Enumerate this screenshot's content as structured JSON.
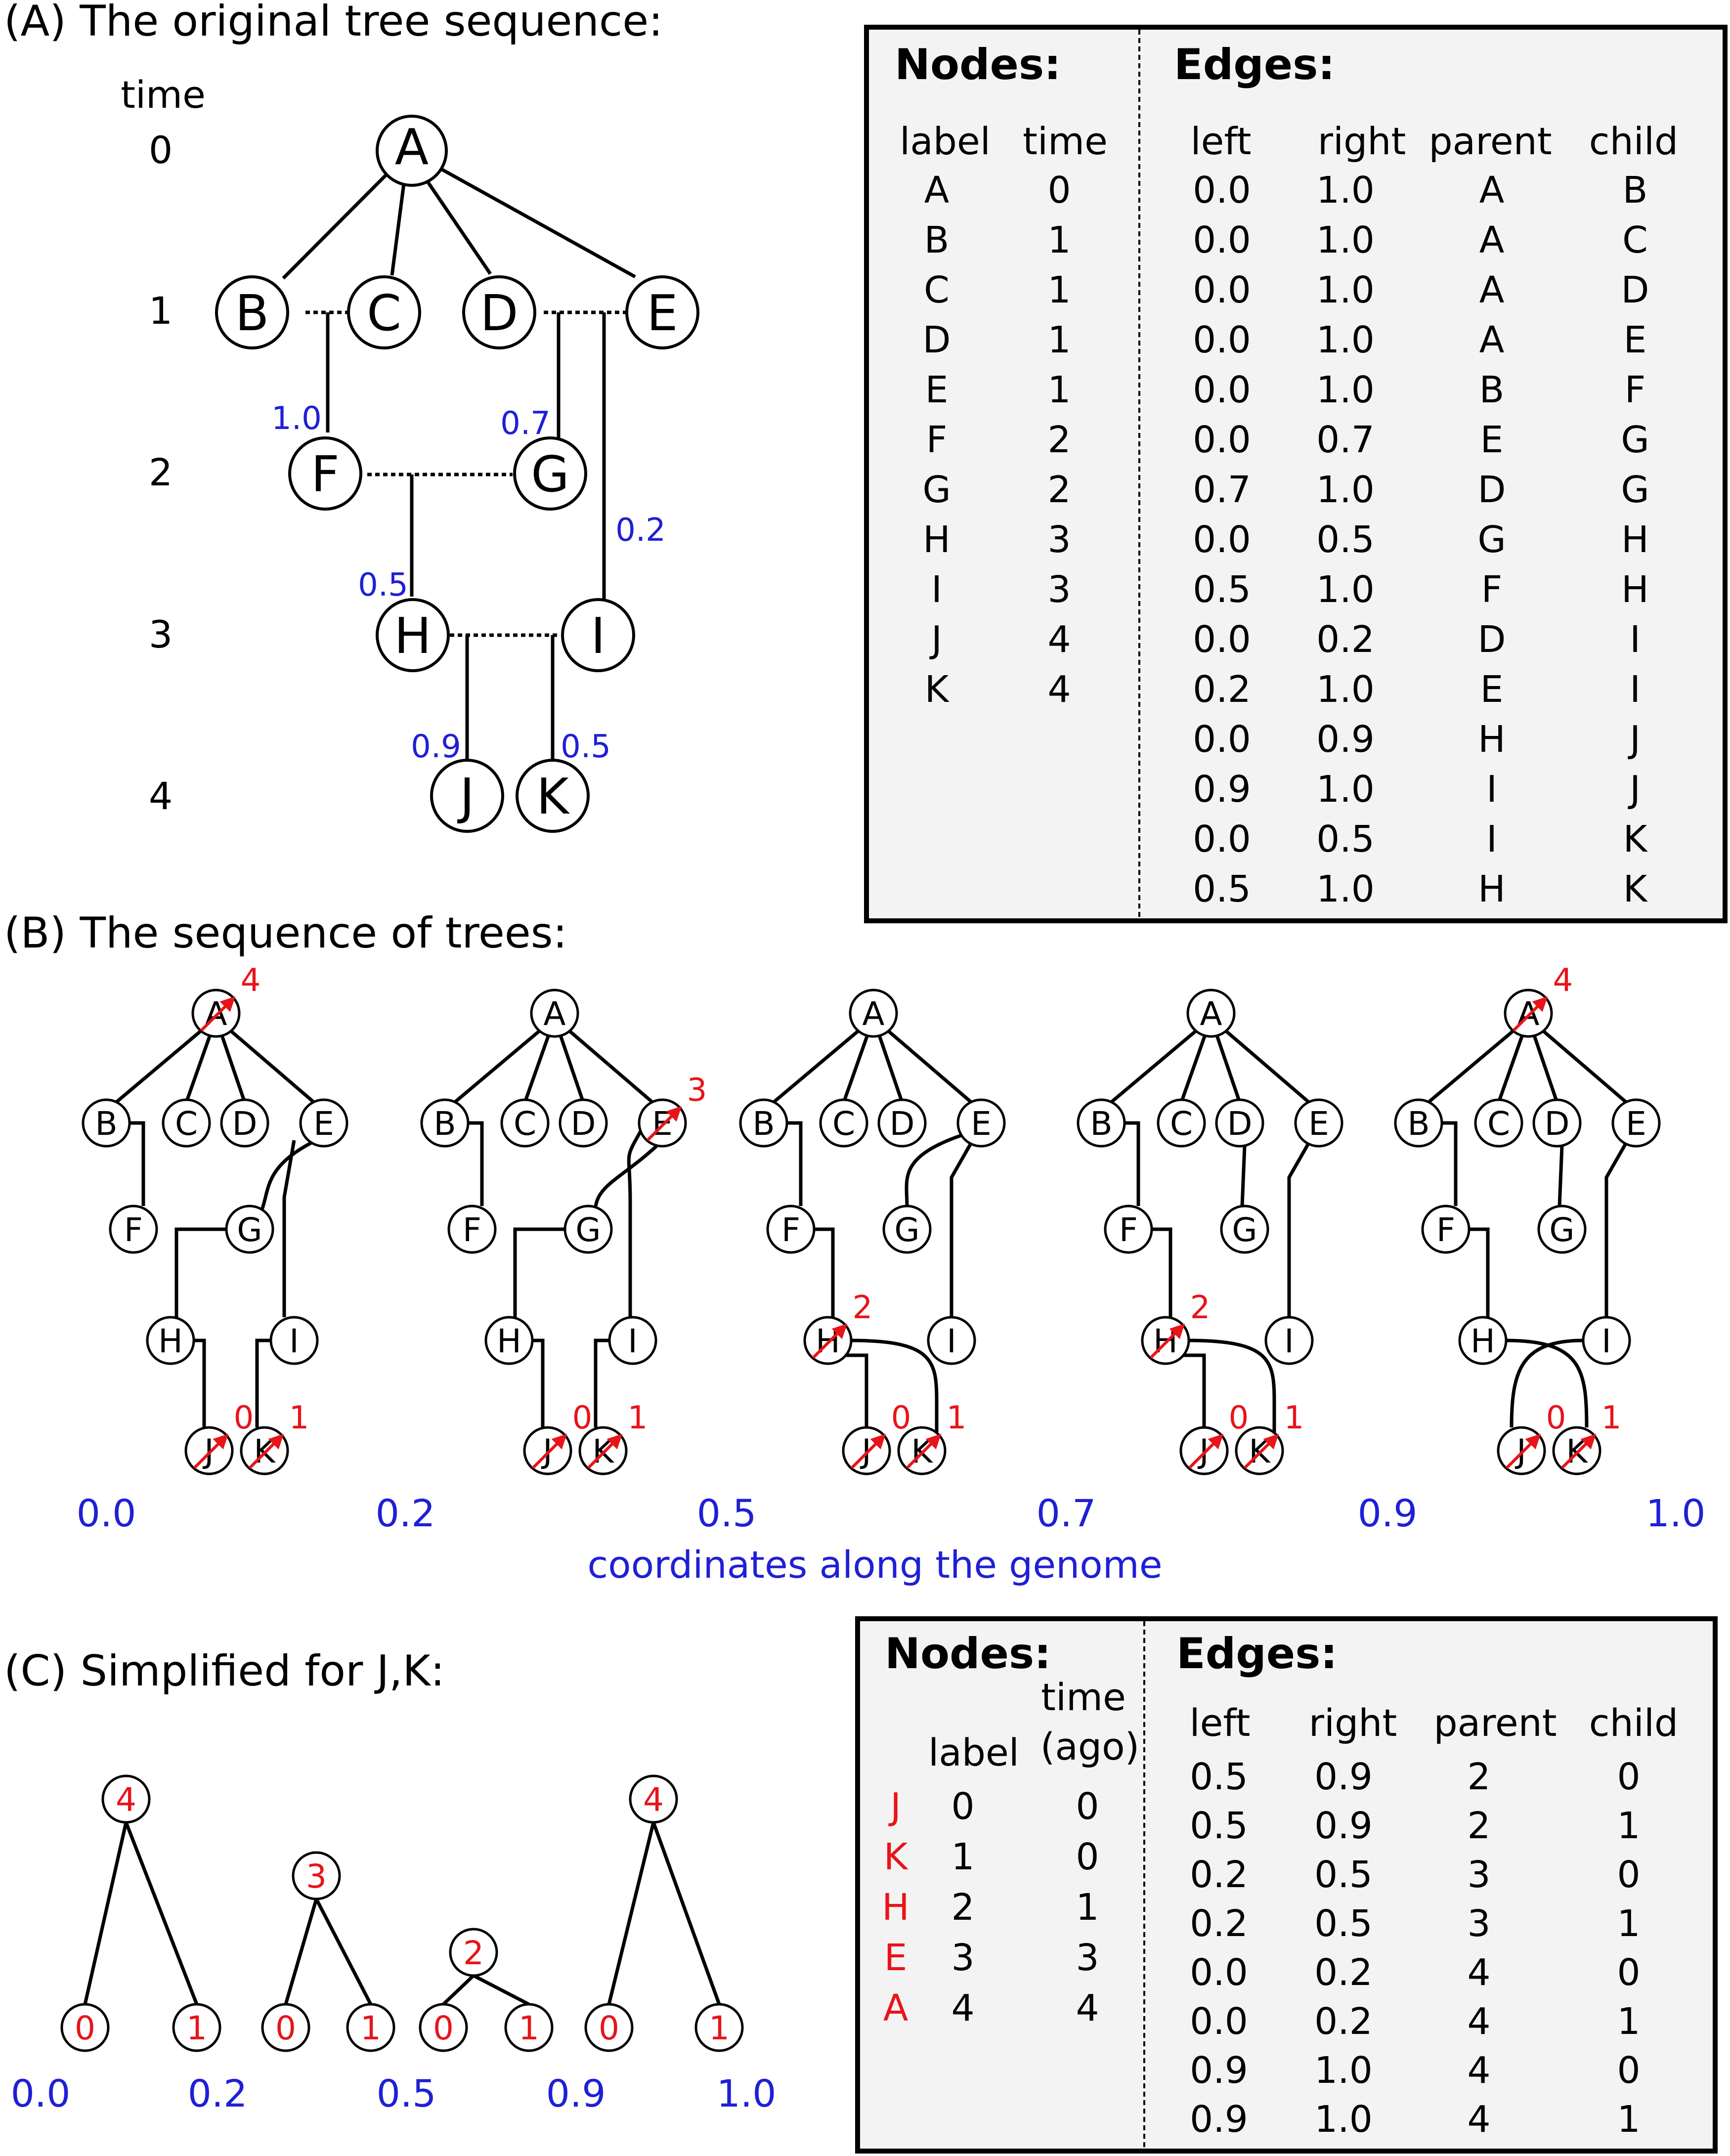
{
  "panel_a": {
    "title": "(A) The original tree sequence:",
    "time_header": "time",
    "time_labels": [
      "0",
      "1",
      "2",
      "3",
      "4"
    ],
    "nodes": [
      "A",
      "B",
      "C",
      "D",
      "E",
      "F",
      "G",
      "H",
      "I",
      "J",
      "K"
    ],
    "breakpoints": [
      "1.0",
      "0.7",
      "0.2",
      "0.5",
      "0.9",
      "0.5"
    ],
    "nodes_table": {
      "heading": "Nodes:",
      "columns": [
        "label",
        "time"
      ],
      "rows": [
        [
          "A",
          "0"
        ],
        [
          "B",
          "1"
        ],
        [
          "C",
          "1"
        ],
        [
          "D",
          "1"
        ],
        [
          "E",
          "1"
        ],
        [
          "F",
          "2"
        ],
        [
          "G",
          "2"
        ],
        [
          "H",
          "3"
        ],
        [
          "I",
          "3"
        ],
        [
          "J",
          "4"
        ],
        [
          "K",
          "4"
        ]
      ]
    },
    "edges_table": {
      "heading": "Edges:",
      "columns": [
        "left",
        "right",
        "parent",
        "child"
      ],
      "rows": [
        [
          "0.0",
          "1.0",
          "A",
          "B"
        ],
        [
          "0.0",
          "1.0",
          "A",
          "C"
        ],
        [
          "0.0",
          "1.0",
          "A",
          "D"
        ],
        [
          "0.0",
          "1.0",
          "A",
          "E"
        ],
        [
          "0.0",
          "1.0",
          "B",
          "F"
        ],
        [
          "0.0",
          "0.7",
          "E",
          "G"
        ],
        [
          "0.7",
          "1.0",
          "D",
          "G"
        ],
        [
          "0.0",
          "0.5",
          "G",
          "H"
        ],
        [
          "0.5",
          "1.0",
          "F",
          "H"
        ],
        [
          "0.0",
          "0.2",
          "D",
          "I"
        ],
        [
          "0.2",
          "1.0",
          "E",
          "I"
        ],
        [
          "0.0",
          "0.9",
          "H",
          "J"
        ],
        [
          "0.9",
          "1.0",
          "I",
          "J"
        ],
        [
          "0.0",
          "0.5",
          "I",
          "K"
        ],
        [
          "0.5",
          "1.0",
          "H",
          "K"
        ]
      ]
    }
  },
  "panel_b": {
    "title": "(B) The sequence of trees:",
    "coordinates": [
      "0.0",
      "0.2",
      "0.5",
      "0.7",
      "0.9",
      "1.0"
    ],
    "axis_label": "coordinates along the genome",
    "mutation_labels": [
      "4",
      "3",
      "2",
      "2",
      "4",
      "0",
      "1"
    ]
  },
  "panel_c": {
    "title": "(C) Simplified for J,K:",
    "coordinates": [
      "0.0",
      "0.2",
      "0.5",
      "0.9",
      "1.0"
    ],
    "tree_roots": [
      "4",
      "3",
      "2",
      "4"
    ],
    "tree_leaves": [
      "0",
      "1"
    ],
    "nodes_table": {
      "heading": "Nodes:",
      "columns": [
        "label",
        "time",
        "(ago)"
      ],
      "rows": [
        [
          "J",
          "0",
          "0"
        ],
        [
          "K",
          "1",
          "0"
        ],
        [
          "H",
          "2",
          "1"
        ],
        [
          "E",
          "3",
          "3"
        ],
        [
          "A",
          "4",
          "4"
        ]
      ]
    },
    "edges_table": {
      "heading": "Edges:",
      "columns": [
        "left",
        "right",
        "parent",
        "child"
      ],
      "rows": [
        [
          "0.5",
          "0.9",
          "2",
          "0"
        ],
        [
          "0.5",
          "0.9",
          "2",
          "1"
        ],
        [
          "0.2",
          "0.5",
          "3",
          "0"
        ],
        [
          "0.2",
          "0.5",
          "3",
          "1"
        ],
        [
          "0.0",
          "0.2",
          "4",
          "0"
        ],
        [
          "0.0",
          "0.2",
          "4",
          "1"
        ],
        [
          "0.9",
          "1.0",
          "4",
          "0"
        ],
        [
          "0.9",
          "1.0",
          "4",
          "1"
        ]
      ]
    }
  }
}
